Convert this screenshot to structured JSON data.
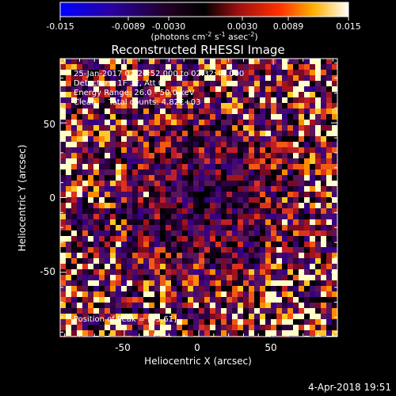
{
  "colorbar": {
    "ticks": [
      "-0.015",
      "-0.0089",
      "-0.0030",
      "0.0030",
      "0.0089",
      "0.015"
    ],
    "units": "(photons cm",
    "units_exp1": "-2",
    "units_mid": " s",
    "units_exp2": "-1",
    "units_mid2": " asec",
    "units_exp3": "-2",
    "units_end": ")"
  },
  "footer": {
    "timestamp": "4-Apr-2018 19:51"
  },
  "chart_data": {
    "type": "heatmap",
    "title": "Reconstructed RHESSI Image",
    "xlabel": "Heliocentric X (arcsec)",
    "ylabel": "Heliocentric Y (arcsec)",
    "xlim": [
      -93,
      93
    ],
    "ylim": [
      -93,
      93
    ],
    "x_ticks": [
      "-50",
      "0",
      "50"
    ],
    "y_ticks": [
      "50",
      "0",
      "-50"
    ],
    "colorscale": "rhessi-blue-black-red-yellow-white",
    "color_range": [
      -0.015,
      0.015
    ],
    "annotations": {
      "time": "25-Jan-2017 02:26:52.000 to 02:32:44.000",
      "detectors": "Detectors: 1F 3F, Att 0",
      "energy": "Energy Range: 26.0 - 50.0 keV",
      "clean": "Clean     Total counts: 4.82E+03",
      "peak": "Position of Peak = [53,61]"
    },
    "peak_position": [
      53,
      61
    ]
  }
}
